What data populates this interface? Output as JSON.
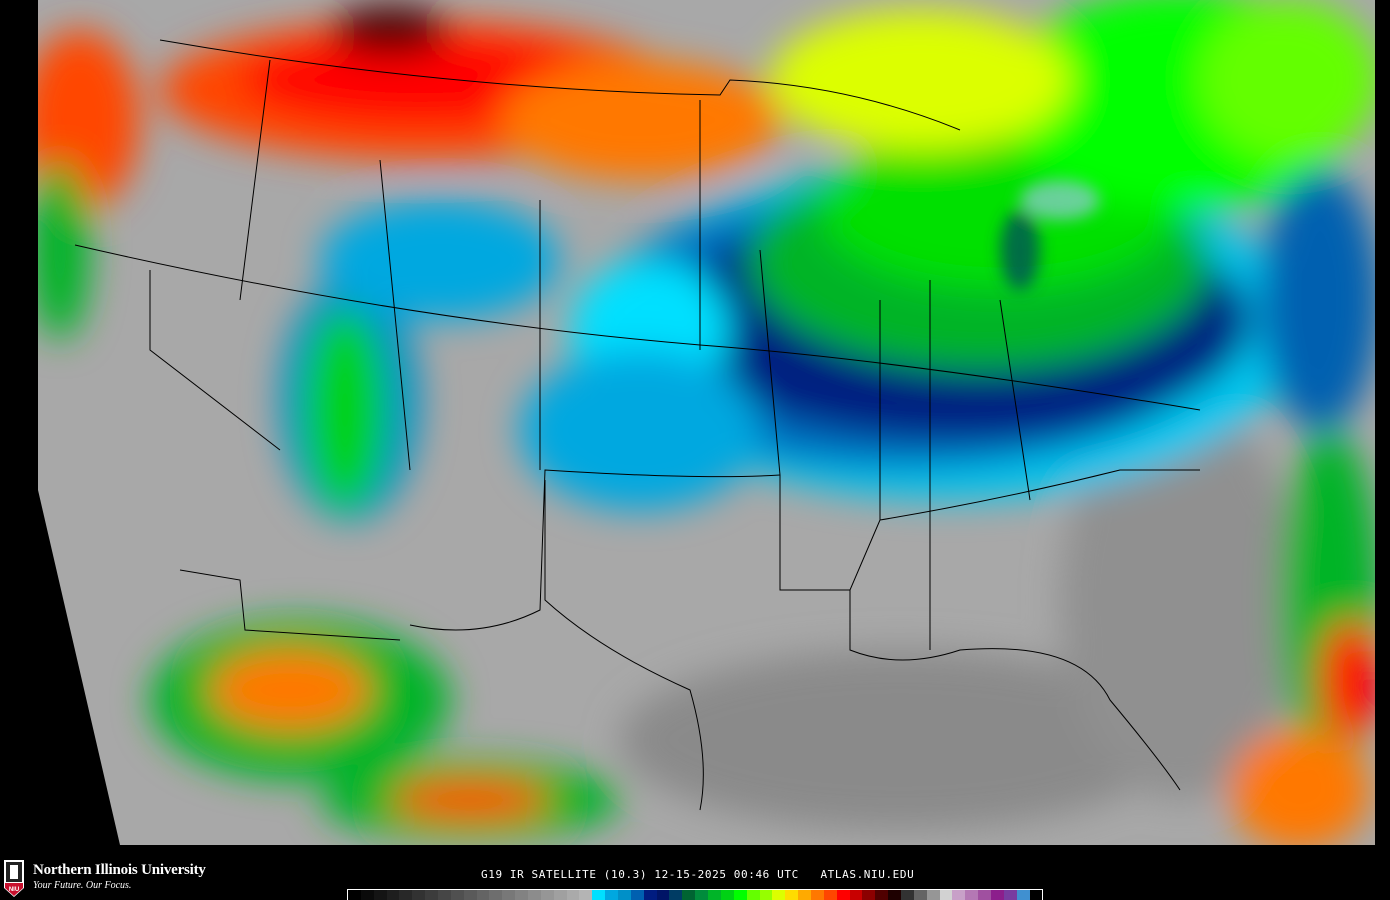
{
  "image": {
    "type": "infrared satellite map",
    "region": "continental United States",
    "background": "#000000"
  },
  "branding": {
    "university": "Northern Illinois University",
    "tagline": "Your Future. Our Focus.",
    "logo_text": "NIU",
    "logo_color": "#c8102e"
  },
  "caption": {
    "satellite": "G19",
    "product": "IR SATELLITE",
    "band": "(10.3)",
    "date": "12-15-2025",
    "time": "00:46 UTC",
    "site": "ATLAS.NIU.EDU",
    "text": "G19 IR SATELLITE (10.3) 12-15-2025 00:46 UTC   ATLAS.NIU.EDU"
  },
  "colorbar": {
    "colors": [
      "#000000",
      "#0a0a0a",
      "#141414",
      "#1e1e1e",
      "#282828",
      "#323232",
      "#3c3c3c",
      "#464646",
      "#505050",
      "#5a5a5a",
      "#646464",
      "#6e6e6e",
      "#787878",
      "#828282",
      "#8c8c8c",
      "#969696",
      "#a0a0a0",
      "#aaaaaa",
      "#b4b4b4",
      "#00e0ff",
      "#00a8e0",
      "#0090c8",
      "#0060b0",
      "#001c80",
      "#001466",
      "#003c64",
      "#006432",
      "#008c3c",
      "#00b428",
      "#00d214",
      "#00ff00",
      "#64ff00",
      "#96ff00",
      "#dcff00",
      "#ffdc00",
      "#ffaa00",
      "#ff7800",
      "#ff4600",
      "#ff0000",
      "#c80000",
      "#8c0000",
      "#500000",
      "#1e0000",
      "#323232",
      "#646464",
      "#969696",
      "#d2d2d2",
      "#c8a0c8",
      "#b478b4",
      "#a050a0",
      "#8c1e8c",
      "#783ca0",
      "#4090d0",
      "#000000"
    ]
  }
}
